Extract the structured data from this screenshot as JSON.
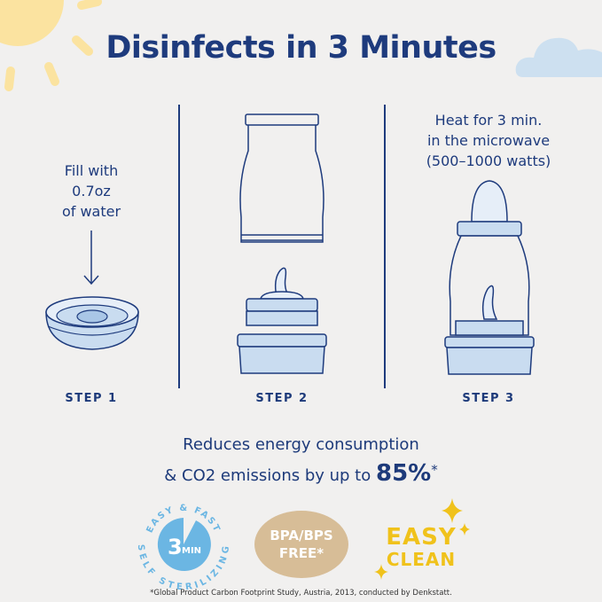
{
  "title": "Disinfects in 3 Minutes",
  "steps": [
    {
      "label": "STEP 1",
      "instruction": [
        "Fill with",
        "0.7oz",
        "of water"
      ]
    },
    {
      "label": "STEP 2"
    },
    {
      "label": "STEP 3",
      "instruction": [
        "Heat for 3 min.",
        "in the microwave",
        "(500–1000 watts)"
      ]
    }
  ],
  "energy": {
    "line1": "Reduces energy consumption",
    "line2": "& CO2 emissions by up to",
    "percent": "85%",
    "asterisk": "*"
  },
  "badges": {
    "sterilizing": {
      "top": "EASY & FAST",
      "bottom": "SELF STERILIZING",
      "number": "3",
      "unit": "MIN"
    },
    "bpa": {
      "line1": "BPA/BPS",
      "line2": "FREE*"
    },
    "clean": {
      "line1": "EASY",
      "line2": "CLEAN"
    }
  },
  "footnote": "*Global Product Carbon Footprint Study, Austria, 2013, conducted by Denkstatt.",
  "colors": {
    "navy": "#1e3b7d",
    "background": "#f1f0ef",
    "light_blue": "#c9dcf0",
    "badge_blue": "#6bb6e3",
    "tan": "#d7bd97",
    "yellow": "#f0c21b",
    "sun": "#fbe6a3"
  }
}
